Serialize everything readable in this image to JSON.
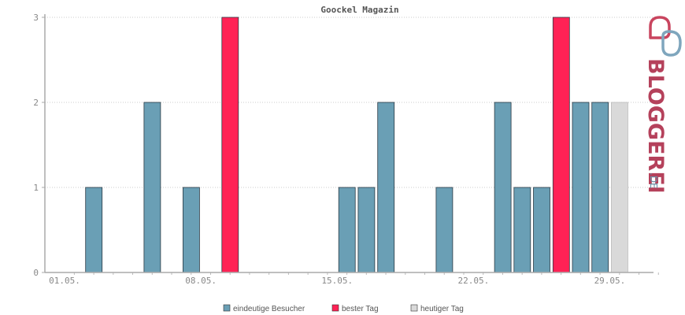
{
  "chart_data": {
    "type": "bar",
    "title": "Goockel Magazin",
    "xlabel": "",
    "ylabel": "",
    "ylim": [
      0,
      3
    ],
    "yticks": [
      "0",
      "1",
      "2",
      "3"
    ],
    "x_tick_labels": [
      {
        "day": 1,
        "label": "01.05."
      },
      {
        "day": 8,
        "label": "08.05."
      },
      {
        "day": 15,
        "label": "15.05."
      },
      {
        "day": 22,
        "label": "22.05."
      },
      {
        "day": 29,
        "label": "29.05."
      }
    ],
    "days": [
      1,
      2,
      3,
      4,
      5,
      6,
      7,
      8,
      9,
      10,
      11,
      12,
      13,
      14,
      15,
      16,
      17,
      18,
      19,
      20,
      21,
      22,
      23,
      24,
      25,
      26,
      27,
      28,
      29,
      30,
      31
    ],
    "values": [
      0,
      1,
      0,
      0,
      2,
      0,
      1,
      0,
      3,
      0,
      0,
      0,
      0,
      0,
      1,
      1,
      2,
      0,
      0,
      1,
      0,
      0,
      2,
      1,
      1,
      3,
      2,
      2,
      2,
      0,
      0
    ],
    "series": [
      {
        "name": "eindeutige Besucher",
        "color": "#6a9fb5"
      },
      {
        "name": "bester Tag",
        "color": "#ff2255"
      },
      {
        "name": "heutiger Tag",
        "color": "#d9d9d9"
      }
    ],
    "best_days": [
      9,
      26
    ],
    "today": 29,
    "grid": true,
    "legend_position": "bottom"
  },
  "brand": {
    "name": "BLOGGEREI",
    "tld": ".DE"
  }
}
